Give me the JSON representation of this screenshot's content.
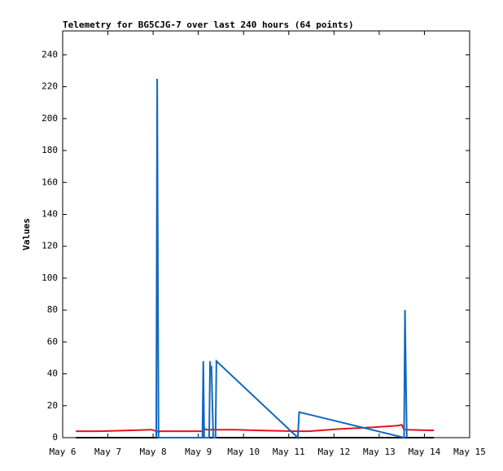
{
  "chart_data": {
    "type": "line",
    "title": "Telemetry for BG5CJG-7 over last 240 hours (64 points)",
    "ylabel": "Values",
    "xlim": [
      6,
      15
    ],
    "ylim": [
      0,
      255
    ],
    "xticks": [
      {
        "value": 6,
        "label": "May 6"
      },
      {
        "value": 7,
        "label": "May 7"
      },
      {
        "value": 8,
        "label": "May 8"
      },
      {
        "value": 9,
        "label": "May 9"
      },
      {
        "value": 10,
        "label": "May 10"
      },
      {
        "value": 11,
        "label": "May 11"
      },
      {
        "value": 12,
        "label": "May 12"
      },
      {
        "value": 13,
        "label": "May 13"
      },
      {
        "value": 14,
        "label": "May 14"
      },
      {
        "value": 15,
        "label": "May 15"
      }
    ],
    "yticks": [
      0,
      20,
      40,
      60,
      80,
      100,
      120,
      140,
      160,
      180,
      200,
      220,
      240
    ],
    "series": [
      {
        "color": "#000000",
        "x": [
          6.29,
          8.07,
          9.09,
          11.2,
          13.55,
          14.21
        ],
        "values": [
          0,
          0,
          0,
          0,
          0,
          0
        ]
      },
      {
        "color": "#e8111b",
        "x": [
          6.29,
          6.77,
          7.97,
          8.13,
          8.15,
          9.09,
          9.11,
          9.18,
          9.81,
          10.35,
          11.16,
          11.43,
          12.15,
          12.87,
          13.41,
          13.5,
          13.55,
          14.21
        ],
        "values": [
          4,
          4,
          5,
          3.5,
          4,
          4,
          6,
          5,
          5,
          4.5,
          4,
          4,
          5.5,
          6.5,
          7.5,
          8,
          5,
          4.5
        ]
      },
      {
        "color": "#1068c0",
        "x": [
          8.07,
          8.09,
          8.1,
          8.12,
          9.09,
          9.11,
          9.13,
          9.24,
          9.26,
          9.27,
          9.29,
          9.33,
          9.38,
          9.4,
          11.2,
          11.23,
          13.55,
          13.57,
          13.59,
          13.61
        ],
        "values": [
          0,
          225,
          145,
          0,
          0,
          48,
          0,
          0,
          48,
          40,
          45,
          0,
          0,
          48,
          0,
          16,
          0,
          80,
          40,
          0
        ]
      }
    ]
  }
}
